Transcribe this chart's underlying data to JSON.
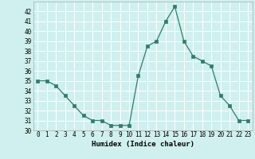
{
  "x": [
    0,
    1,
    2,
    3,
    4,
    5,
    6,
    7,
    8,
    9,
    10,
    11,
    12,
    13,
    14,
    15,
    16,
    17,
    18,
    19,
    20,
    21,
    22,
    23
  ],
  "y": [
    35,
    35,
    34.5,
    33.5,
    32.5,
    31.5,
    31,
    31,
    30.5,
    30.5,
    30.5,
    35.5,
    38.5,
    39,
    41,
    42.5,
    39,
    37.5,
    37,
    36.5,
    33.5,
    32.5,
    31,
    31
  ],
  "line_color": "#2e7d6b",
  "marker": "s",
  "marker_size": 2.5,
  "bg_color": "#cff0ee",
  "grid_color": "#ffffff",
  "xlabel": "Humidex (Indice chaleur)",
  "ylim": [
    30,
    43
  ],
  "xlim": [
    -0.5,
    23.5
  ],
  "yticks": [
    30,
    31,
    32,
    33,
    34,
    35,
    36,
    37,
    38,
    39,
    40,
    41,
    42
  ],
  "xticks": [
    0,
    1,
    2,
    3,
    4,
    5,
    6,
    7,
    8,
    9,
    10,
    11,
    12,
    13,
    14,
    15,
    16,
    17,
    18,
    19,
    20,
    21,
    22,
    23
  ],
  "tick_fontsize": 5.5,
  "label_fontsize": 6.5
}
